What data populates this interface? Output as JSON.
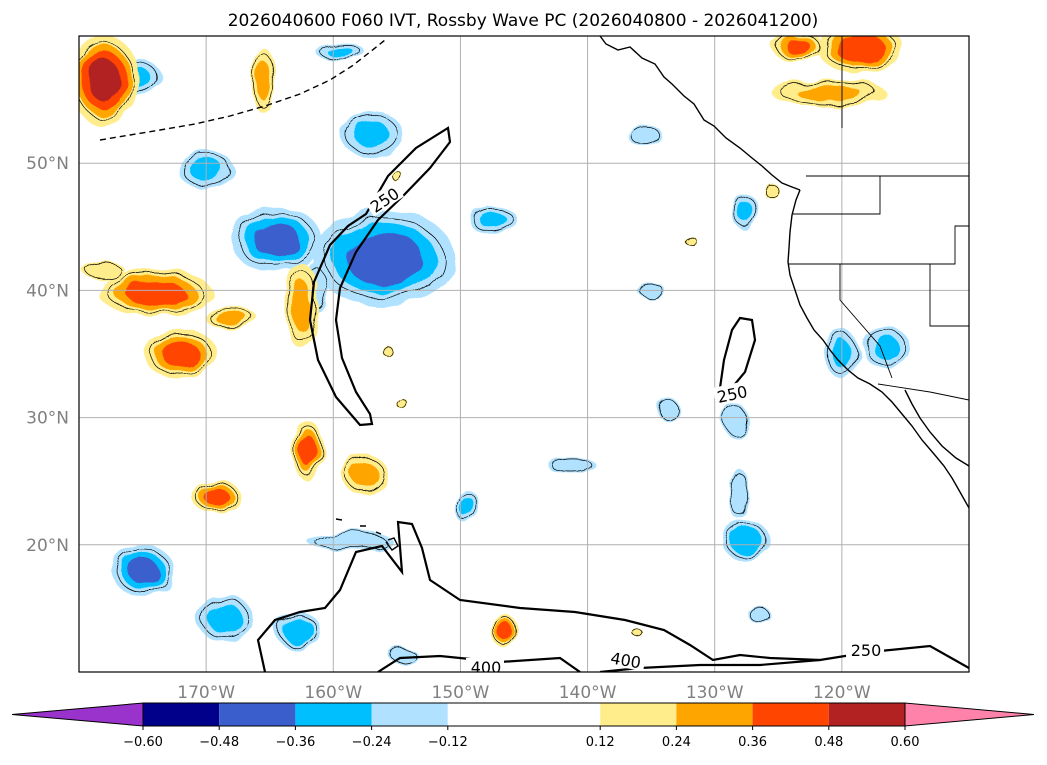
{
  "chart_data": {
    "type": "heatmap",
    "title": "2026040600 F060 IVT, Rossby Wave PC (2026040800 - 2026041200)",
    "xlabel": "",
    "ylabel": "",
    "lon_range": [
      -180,
      -110
    ],
    "lat_range": [
      10,
      60
    ],
    "x_ticks": [
      {
        "value": -170,
        "label": "170°W"
      },
      {
        "value": -160,
        "label": "160°W"
      },
      {
        "value": -150,
        "label": "150°W"
      },
      {
        "value": -140,
        "label": "140°W"
      },
      {
        "value": -130,
        "label": "130°W"
      },
      {
        "value": -120,
        "label": "120°W"
      }
    ],
    "y_ticks": [
      {
        "value": 20,
        "label": "20°N"
      },
      {
        "value": 30,
        "label": "30°N"
      },
      {
        "value": 40,
        "label": "40°N"
      },
      {
        "value": 50,
        "label": "50°N"
      }
    ],
    "grid": true,
    "colorbar": {
      "orientation": "horizontal",
      "extend": "both",
      "boundaries": [
        -0.72,
        -0.6,
        -0.48,
        -0.36,
        -0.24,
        -0.12,
        0.12,
        0.24,
        0.36,
        0.48,
        0.6,
        0.72
      ],
      "colors": [
        "#9933cc",
        "#00008b",
        "#3a5fcd",
        "#00bfff",
        "#b0e2ff",
        "#ffffff",
        "#ffec8b",
        "#ffa500",
        "#ff4500",
        "#b22222",
        "#ff82ab"
      ],
      "tick_labels": [
        "−0.60",
        "−0.48",
        "−0.36",
        "−0.24",
        "−0.12",
        "0.12",
        "0.24",
        "0.36",
        "0.48",
        "0.60"
      ]
    },
    "ivt_contours": [
      {
        "label": "250",
        "value": 250
      },
      {
        "label": "250",
        "value": 250
      },
      {
        "label": "250",
        "value": 250
      },
      {
        "label": "400",
        "value": 400
      },
      {
        "label": "400",
        "value": 400
      }
    ],
    "anomaly_blobs": [
      {
        "lon": -156,
        "lat": 42.5,
        "rx": 5,
        "ry": 3.4,
        "v": -0.42
      },
      {
        "lon": -164.5,
        "lat": 44,
        "rx": 3.2,
        "ry": 2.3,
        "v": -0.4
      },
      {
        "lon": -161.5,
        "lat": 40.2,
        "rx": 1.0,
        "ry": 1.8,
        "v": -0.24
      },
      {
        "lon": -157,
        "lat": 52.3,
        "rx": 2.2,
        "ry": 1.6,
        "v": -0.26
      },
      {
        "lon": -170,
        "lat": 49.5,
        "rx": 2.0,
        "ry": 1.3,
        "v": -0.28
      },
      {
        "lon": -175.5,
        "lat": 56.8,
        "rx": 1.7,
        "ry": 1.3,
        "v": -0.26
      },
      {
        "lon": -159.5,
        "lat": 58.8,
        "rx": 1.7,
        "ry": 0.7,
        "v": -0.25
      },
      {
        "lon": -147.5,
        "lat": 45.6,
        "rx": 1.7,
        "ry": 1.0,
        "v": -0.26
      },
      {
        "lon": -135.5,
        "lat": 52.2,
        "rx": 1.2,
        "ry": 0.8,
        "v": -0.2
      },
      {
        "lon": -135,
        "lat": 40,
        "rx": 1.0,
        "ry": 0.5,
        "v": -0.2
      },
      {
        "lon": -127.6,
        "lat": 46.2,
        "rx": 0.9,
        "ry": 1.3,
        "v": -0.26
      },
      {
        "lon": -120,
        "lat": 35,
        "rx": 1.2,
        "ry": 1.7,
        "v": -0.26
      },
      {
        "lon": -116.5,
        "lat": 35.5,
        "rx": 1.7,
        "ry": 1.4,
        "v": -0.26
      },
      {
        "lon": -128.3,
        "lat": 29.7,
        "rx": 0.9,
        "ry": 1.2,
        "v": -0.24
      },
      {
        "lon": -133.8,
        "lat": 30.8,
        "rx": 0.8,
        "ry": 0.8,
        "v": -0.2
      },
      {
        "lon": -128.1,
        "lat": 24,
        "rx": 0.7,
        "ry": 1.8,
        "v": -0.24
      },
      {
        "lon": -127.5,
        "lat": 20.3,
        "rx": 1.7,
        "ry": 1.4,
        "v": -0.36
      },
      {
        "lon": -141.2,
        "lat": 26.2,
        "rx": 1.7,
        "ry": 0.6,
        "v": -0.2
      },
      {
        "lon": -149.5,
        "lat": 23,
        "rx": 0.9,
        "ry": 1.2,
        "v": -0.28
      },
      {
        "lon": -158.7,
        "lat": 20.3,
        "rx": 3.0,
        "ry": 0.7,
        "v": -0.2
      },
      {
        "lon": -175,
        "lat": 18,
        "rx": 2.2,
        "ry": 1.8,
        "v": -0.38
      },
      {
        "lon": -168.5,
        "lat": 14.2,
        "rx": 2.0,
        "ry": 1.6,
        "v": -0.3
      },
      {
        "lon": -162.7,
        "lat": 13.2,
        "rx": 1.6,
        "ry": 1.3,
        "v": -0.36
      },
      {
        "lon": -154.5,
        "lat": 11.3,
        "rx": 1.0,
        "ry": 0.6,
        "v": -0.2
      },
      {
        "lon": -126.5,
        "lat": 14.5,
        "rx": 0.8,
        "ry": 0.6,
        "v": -0.2
      },
      {
        "lon": -178,
        "lat": 56.5,
        "rx": 2.4,
        "ry": 3.2,
        "v": 0.52
      },
      {
        "lon": -118.5,
        "lat": 59,
        "rx": 3.0,
        "ry": 1.8,
        "v": 0.45
      },
      {
        "lon": -121,
        "lat": 55.5,
        "rx": 4.0,
        "ry": 1.0,
        "v": 0.26
      },
      {
        "lon": -123.5,
        "lat": 59.2,
        "rx": 1.8,
        "ry": 1.1,
        "v": 0.38
      },
      {
        "lon": -165.5,
        "lat": 56.5,
        "rx": 0.8,
        "ry": 2.3,
        "v": 0.28
      },
      {
        "lon": -174,
        "lat": 39.8,
        "rx": 4.0,
        "ry": 1.6,
        "v": 0.4
      },
      {
        "lon": -172,
        "lat": 35,
        "rx": 2.6,
        "ry": 1.7,
        "v": 0.4
      },
      {
        "lon": -168,
        "lat": 37.8,
        "rx": 1.8,
        "ry": 0.8,
        "v": 0.3
      },
      {
        "lon": -162.5,
        "lat": 38.8,
        "rx": 1.2,
        "ry": 3.0,
        "v": 0.28
      },
      {
        "lon": -162,
        "lat": 27.4,
        "rx": 1.1,
        "ry": 2.1,
        "v": 0.4
      },
      {
        "lon": -157.5,
        "lat": 25.5,
        "rx": 1.6,
        "ry": 1.4,
        "v": 0.28
      },
      {
        "lon": -169.2,
        "lat": 23.8,
        "rx": 1.7,
        "ry": 1.2,
        "v": 0.4
      },
      {
        "lon": -146.5,
        "lat": 13.2,
        "rx": 0.9,
        "ry": 1.2,
        "v": 0.42
      },
      {
        "lon": -155,
        "lat": 49,
        "rx": 0.4,
        "ry": 0.4,
        "v": 0.2
      },
      {
        "lon": -155.5,
        "lat": 35,
        "rx": 0.4,
        "ry": 0.4,
        "v": 0.2
      },
      {
        "lon": -154.5,
        "lat": 31,
        "rx": 0.4,
        "ry": 0.4,
        "v": 0.2
      },
      {
        "lon": -132,
        "lat": 44,
        "rx": 0.5,
        "ry": 0.3,
        "v": 0.2
      },
      {
        "lon": -136,
        "lat": 13,
        "rx": 0.4,
        "ry": 0.3,
        "v": 0.2
      },
      {
        "lon": -125.5,
        "lat": 47.8,
        "rx": 0.6,
        "ry": 0.5,
        "v": 0.22
      },
      {
        "lon": -178,
        "lat": 41.5,
        "rx": 1.5,
        "ry": 0.6,
        "v": 0.24
      }
    ]
  }
}
